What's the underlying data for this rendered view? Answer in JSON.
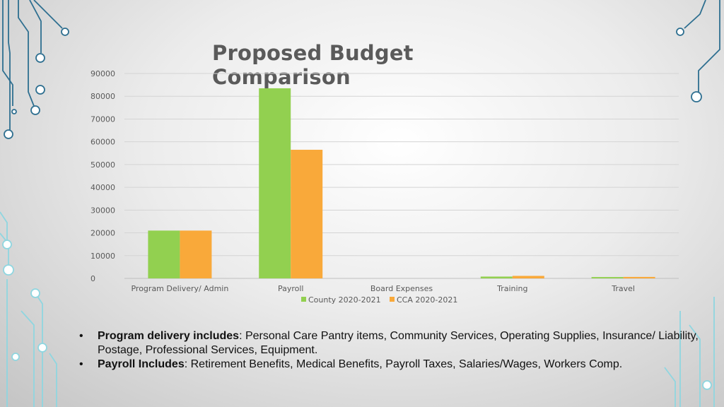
{
  "colors": {
    "county": "#92d050",
    "cca": "#f9a93a",
    "circuit": "#2e6f90",
    "circuit_light": "#8fd6e0",
    "grid": "#d4d4d4"
  },
  "chart_data": {
    "type": "bar",
    "title": "Proposed Budget Comparison",
    "categories": [
      "Program Delivery/ Admin",
      "Payroll",
      "Board Expenses",
      "Training",
      "Travel"
    ],
    "series": [
      {
        "name": "County 2020-2021",
        "values": [
          21000,
          83500,
          0,
          800,
          600
        ]
      },
      {
        "name": "CCA 2020-2021",
        "values": [
          21000,
          56500,
          0,
          1100,
          650
        ]
      }
    ],
    "ylim": [
      0,
      90000
    ],
    "yticks": [
      0,
      10000,
      20000,
      30000,
      40000,
      50000,
      60000,
      70000,
      80000,
      90000
    ],
    "grid": true,
    "legend": "bottom"
  },
  "notes": [
    {
      "bullet": "•",
      "heading": "Program delivery includes",
      "text": ": Personal Care Pantry items, Community Services, Operating Supplies, Insurance/ Liability, Postage, Professional Services, Equipment."
    },
    {
      "bullet": "•",
      "heading": "Payroll Includes",
      "text": ": Retirement Benefits, Medical Benefits, Payroll Taxes, Salaries/Wages, Workers Comp."
    }
  ]
}
